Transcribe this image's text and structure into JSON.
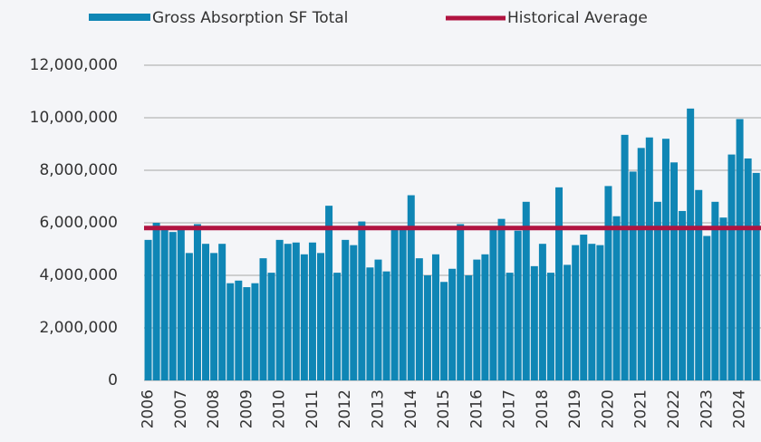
{
  "chart_data": {
    "type": "bar",
    "categories": [
      "2006",
      null,
      null,
      null,
      "2007",
      null,
      null,
      null,
      "2008",
      null,
      null,
      null,
      "2009",
      null,
      null,
      null,
      "2010",
      null,
      null,
      null,
      "2011",
      null,
      null,
      null,
      "2012",
      null,
      null,
      null,
      "2013",
      null,
      null,
      null,
      "2014",
      null,
      null,
      null,
      "2015",
      null,
      null,
      null,
      "2016",
      null,
      null,
      null,
      "2017",
      null,
      null,
      null,
      "2018",
      null,
      null,
      null,
      "2019",
      null,
      null,
      null,
      "2020",
      null,
      null,
      null,
      "2021",
      null,
      null,
      null,
      "2022",
      null,
      null,
      null,
      "2023",
      null,
      null,
      null,
      "2024",
      null,
      null
    ],
    "series": [
      {
        "name": "Gross Absorption SF Total",
        "color": "#0f86b5",
        "values": [
          5350000,
          6000000,
          5850000,
          5650000,
          5750000,
          4850000,
          5950000,
          5200000,
          4850000,
          5200000,
          3700000,
          3800000,
          3550000,
          3700000,
          4650000,
          4100000,
          5350000,
          5200000,
          5250000,
          4800000,
          5250000,
          4850000,
          6650000,
          4100000,
          5350000,
          5150000,
          6050000,
          4300000,
          4600000,
          4150000,
          5800000,
          5800000,
          7050000,
          4650000,
          4000000,
          4800000,
          3750000,
          4250000,
          5950000,
          4000000,
          4600000,
          4800000,
          5800000,
          6150000,
          4100000,
          5700000,
          6800000,
          4350000,
          5200000,
          4100000,
          7350000,
          4400000,
          5150000,
          5550000,
          5200000,
          5150000,
          7400000,
          6250000,
          9350000,
          7950000,
          8850000,
          9250000,
          6800000,
          9200000,
          8300000,
          6450000,
          10350000,
          7250000,
          5500000,
          6800000,
          6200000,
          8600000,
          9950000,
          8450000,
          7900000
        ]
      }
    ],
    "reference_lines": [
      {
        "name": "Historical Average",
        "color": "#b01340",
        "value": 5800000
      }
    ],
    "ylim": [
      0,
      12000000
    ],
    "yticks": [
      0,
      {
        "value": 2000000,
        "label": "2,000,000"
      },
      {
        "value": 4000000,
        "label": "4,000,000"
      },
      {
        "value": 6000000,
        "label": "6,000,000"
      },
      {
        "value": 8000000,
        "label": "8,000,000"
      },
      {
        "value": 10000000,
        "label": "10,000,000"
      },
      {
        "value": 12000000,
        "label": "12,000,000"
      }
    ],
    "grid": true
  }
}
